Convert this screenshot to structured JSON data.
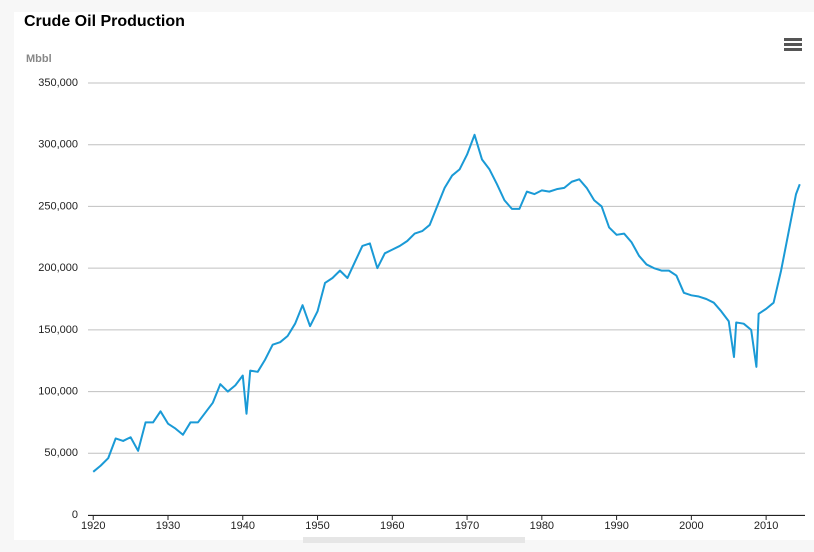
{
  "chart_data": {
    "type": "line",
    "title": "Crude Oil Production",
    "y_axis_label": "Mbbl",
    "x": [
      1920,
      1921,
      1922,
      1923,
      1924,
      1925,
      1926,
      1927,
      1928,
      1929,
      1930,
      1931,
      1932,
      1933,
      1934,
      1935,
      1936,
      1937,
      1938,
      1939,
      1940,
      1940.5,
      1941,
      1942,
      1943,
      1944,
      1945,
      1946,
      1947,
      1948,
      1949,
      1950,
      1951,
      1952,
      1953,
      1954,
      1955,
      1956,
      1957,
      1958,
      1959,
      1960,
      1961,
      1962,
      1963,
      1964,
      1965,
      1966,
      1967,
      1968,
      1969,
      1970,
      1971,
      1972,
      1973,
      1974,
      1975,
      1976,
      1977,
      1978,
      1979,
      1980,
      1981,
      1982,
      1983,
      1984,
      1985,
      1986,
      1987,
      1988,
      1989,
      1990,
      1991,
      1992,
      1993,
      1994,
      1995,
      1996,
      1997,
      1998,
      1999,
      2000,
      2001,
      2002,
      2003,
      2004,
      2005,
      2005.7,
      2006,
      2007,
      2008,
      2008.7,
      2009,
      2010,
      2011,
      2012,
      2013,
      2014,
      2014.5
    ],
    "series": [
      {
        "name": "Crude Oil Production",
        "color": "#1a9ad6",
        "values": [
          35000,
          40000,
          46000,
          62000,
          60000,
          63000,
          52000,
          75000,
          75000,
          84000,
          74000,
          70000,
          65000,
          75000,
          75000,
          83000,
          91000,
          106000,
          100000,
          105000,
          113000,
          82000,
          117000,
          116000,
          126000,
          138000,
          140000,
          145000,
          155000,
          170000,
          153000,
          165000,
          188000,
          192000,
          198000,
          192000,
          205000,
          218000,
          220000,
          200000,
          212000,
          215000,
          218000,
          222000,
          228000,
          230000,
          235000,
          250000,
          265000,
          275000,
          280000,
          292000,
          308000,
          288000,
          280000,
          268000,
          255000,
          248000,
          248000,
          262000,
          260000,
          263000,
          262000,
          264000,
          265000,
          270000,
          272000,
          265000,
          255000,
          250000,
          233000,
          227000,
          228000,
          221000,
          210000,
          203000,
          200000,
          198000,
          198000,
          194000,
          180000,
          178000,
          177000,
          175000,
          172000,
          165000,
          157000,
          128000,
          156000,
          155000,
          150000,
          120000,
          163000,
          167000,
          172000,
          198000,
          229000,
          260000,
          268000
        ]
      }
    ],
    "xlim": [
      1919.3,
      2015.2
    ],
    "xticks": [
      1920,
      1930,
      1940,
      1950,
      1960,
      1970,
      1980,
      1990,
      2000,
      2010
    ],
    "ylim": [
      0,
      350000
    ],
    "yticks": [
      0,
      {
        "value": 50000,
        "label": "50,000"
      },
      {
        "value": 100000,
        "label": "100,000"
      },
      {
        "value": 150000,
        "label": "150,000"
      },
      {
        "value": 200000,
        "label": "200,000"
      },
      {
        "value": 250000,
        "label": "250,000"
      },
      {
        "value": 300000,
        "label": "300,000"
      },
      {
        "value": 350000,
        "label": "350,000"
      }
    ],
    "grid": true
  }
}
